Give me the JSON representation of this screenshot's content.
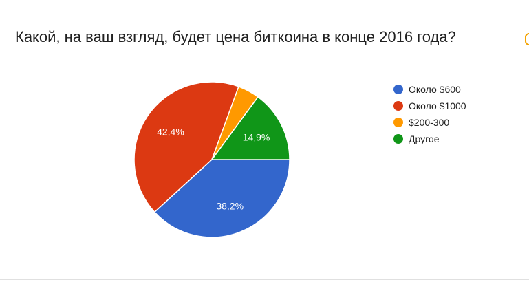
{
  "chart_data": {
    "type": "pie",
    "title": "Какой, на ваш взгляд, будет цена биткоина в конце 2016 года?",
    "legend_position": "right",
    "slices": [
      {
        "name": "Около $600",
        "value": 38.2,
        "label": "38,2%",
        "color": "#3366cc"
      },
      {
        "name": "Около $1000",
        "value": 42.4,
        "label": "42,4%",
        "color": "#dc3912"
      },
      {
        "name": "$200-300",
        "value": 4.5,
        "label": "",
        "color": "#ff9900"
      },
      {
        "name": "Другое",
        "value": 14.9,
        "label": "14,9%",
        "color": "#109618"
      }
    ]
  }
}
